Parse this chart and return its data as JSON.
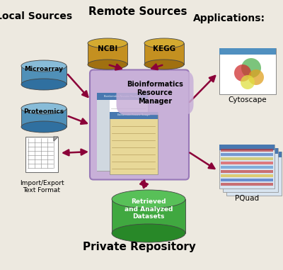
{
  "background_color": "#ede9e0",
  "title_remote": "Remote Sources",
  "title_local": "Local Sources",
  "title_apps": "Applications:",
  "title_private": "Private Repository",
  "label_ncbi": "NCBI",
  "label_kegg": "KEGG",
  "label_microarray": "Microarray",
  "label_proteomics": "Proteomics",
  "label_import": "Import/Export\nText Format",
  "label_brm": "Bioinformatics\nResource\nManager",
  "label_retrieved": "Retrieved\nand Analyzed\nDatasets",
  "label_cytoscape": "Cytoscape",
  "label_pquad": "PQuad",
  "arrow_color": "#8b0038",
  "cyl_gold_top": "#d4aa30",
  "cyl_gold_body": "#c49020",
  "cyl_gold_dark": "#a07010",
  "cyl_blue_top": "#88bcd8",
  "cyl_blue_body": "#5090b8",
  "cyl_blue_dark": "#3070a0",
  "cyl_green_top": "#58c058",
  "cyl_green_body": "#40a840",
  "cyl_green_dark": "#288828",
  "center_box_color": "#c8b0d8",
  "center_box_edge": "#9878b8"
}
